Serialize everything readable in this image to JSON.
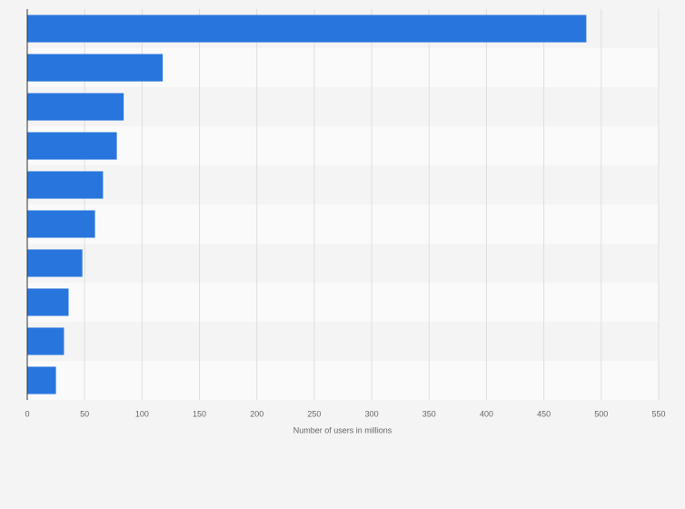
{
  "chart_data": {
    "type": "bar",
    "orientation": "horizontal",
    "values": [
      487,
      118,
      84,
      78,
      66,
      59,
      48,
      36,
      32,
      25
    ],
    "color": "#2876dd",
    "xlabel": "Number of users in millions",
    "xlim": [
      0,
      550
    ],
    "xticks": [
      0,
      50,
      100,
      150,
      200,
      250,
      300,
      350,
      400,
      450,
      500,
      550
    ],
    "grid": true
  }
}
